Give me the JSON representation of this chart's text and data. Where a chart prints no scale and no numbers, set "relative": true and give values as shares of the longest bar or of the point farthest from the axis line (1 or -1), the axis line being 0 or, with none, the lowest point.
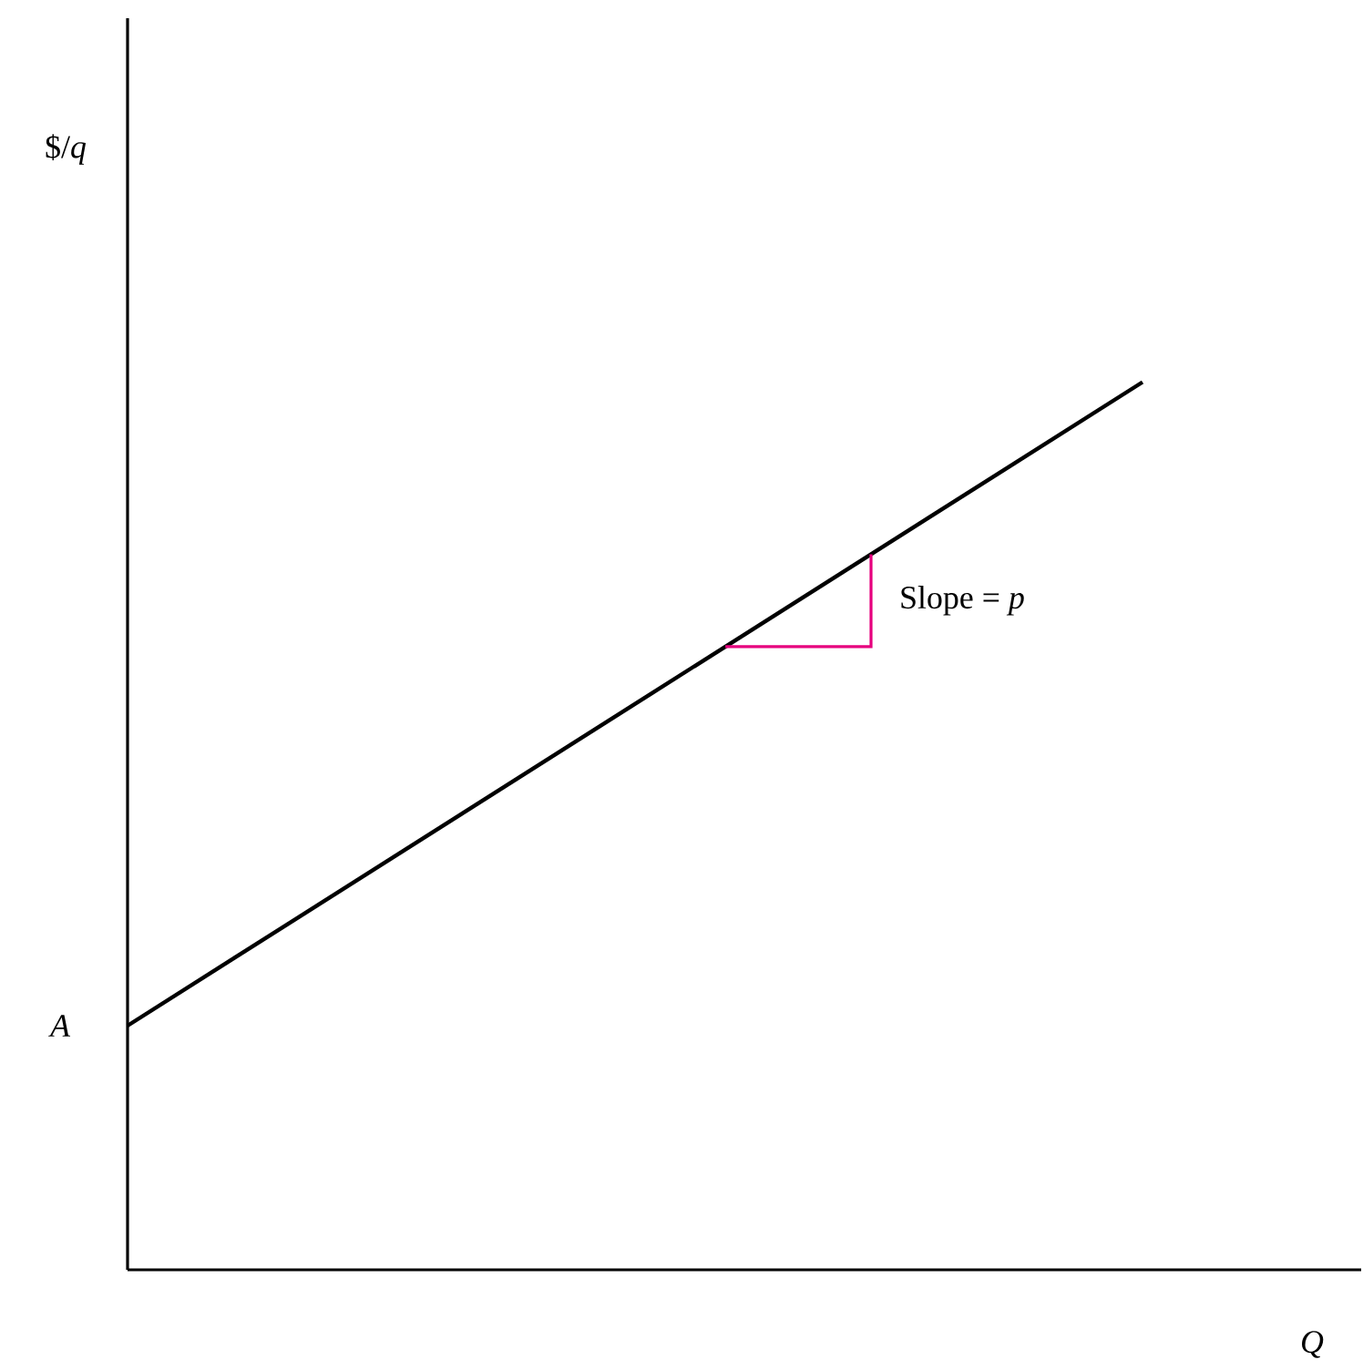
{
  "chart_data": {
    "type": "line",
    "relative": true,
    "xlabel": "Q",
    "categories": [
      null,
      null
    ],
    "series": [
      {
        "color": "#000000",
        "values": [
          0.275,
          1
        ]
      }
    ],
    "annotations": [
      "A",
      "Slope = *p*",
      "$/*q*"
    ]
  }
}
